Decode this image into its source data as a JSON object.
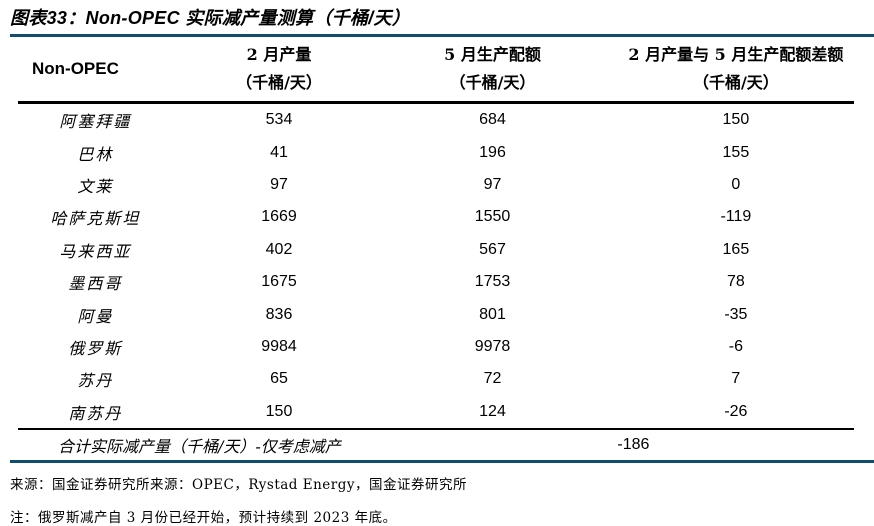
{
  "title": "图表33：Non-OPEC 实际减产量测算（千桶/天）",
  "table": {
    "col0_header": "Non-OPEC",
    "columns": [
      {
        "line1": "2 月产量",
        "line2": "（千桶/天）"
      },
      {
        "line1": "5 月生产配额",
        "line2": "（千桶/天）"
      },
      {
        "line1": "2 月产量与 5 月生产配额差额",
        "line2": "（千桶/天）"
      }
    ],
    "rows": [
      {
        "name": "阿塞拜疆",
        "feb": "534",
        "may": "684",
        "diff": "150"
      },
      {
        "name": "巴林",
        "feb": "41",
        "may": "196",
        "diff": "155"
      },
      {
        "name": "文莱",
        "feb": "97",
        "may": "97",
        "diff": "0"
      },
      {
        "name": "哈萨克斯坦",
        "feb": "1669",
        "may": "1550",
        "diff": "-119"
      },
      {
        "name": "马来西亚",
        "feb": "402",
        "may": "567",
        "diff": "165"
      },
      {
        "name": "墨西哥",
        "feb": "1675",
        "may": "1753",
        "diff": "78"
      },
      {
        "name": "阿曼",
        "feb": "836",
        "may": "801",
        "diff": "-35"
      },
      {
        "name": "俄罗斯",
        "feb": "9984",
        "may": "9978",
        "diff": "-6"
      },
      {
        "name": "苏丹",
        "feb": "65",
        "may": "72",
        "diff": "7"
      },
      {
        "name": "南苏丹",
        "feb": "150",
        "may": "124",
        "diff": "-26"
      }
    ],
    "total": {
      "label": "合计实际减产量（千桶/天）-仅考虑减产",
      "value": "-186"
    }
  },
  "footer": {
    "source": "来源：国金证券研究所来源：OPEC，Rystad Energy，国金证券研究所",
    "note": "注：俄罗斯减产自 3 月份已经开始，预计持续到 2023 年底。"
  },
  "colors": {
    "rule_navy": "#124d6e",
    "rule_black": "#000000",
    "text": "#000000",
    "background": "#ffffff"
  }
}
